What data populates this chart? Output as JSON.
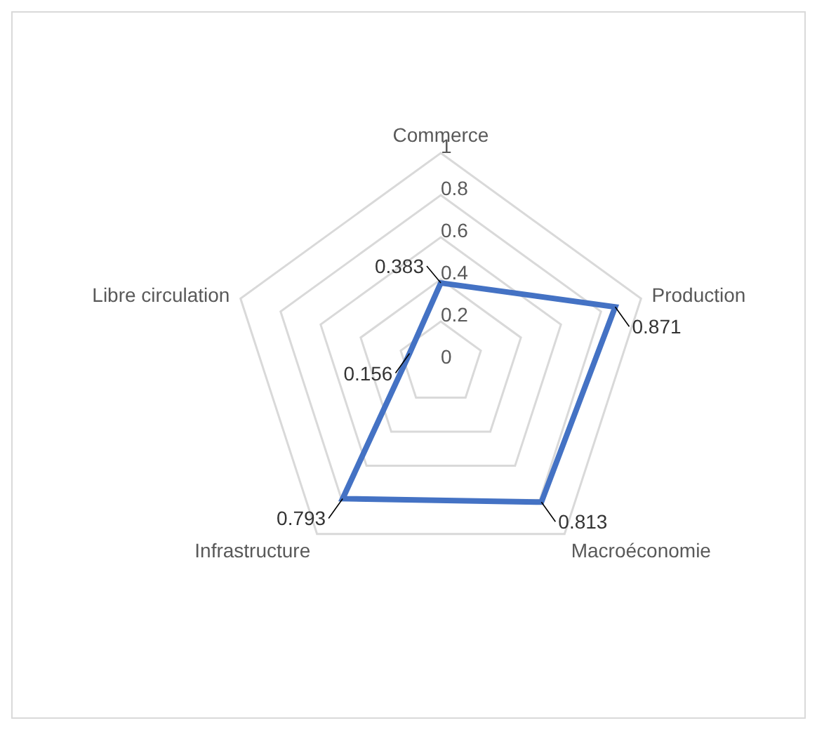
{
  "chart_data": {
    "type": "radar",
    "categories": [
      "Commerce",
      "Production",
      "Macroéconomie",
      "Infrastructure",
      "Libre circulation"
    ],
    "series": [
      {
        "color": "#4472c4",
        "values": [
          0.383,
          0.871,
          0.813,
          0.793,
          0.156
        ]
      }
    ],
    "ylim": [
      0,
      1
    ],
    "yticks": [
      0,
      0.2,
      0.4,
      0.6,
      0.8,
      1
    ],
    "grid": true,
    "data_labels": true,
    "legend": false,
    "marker": "none"
  }
}
